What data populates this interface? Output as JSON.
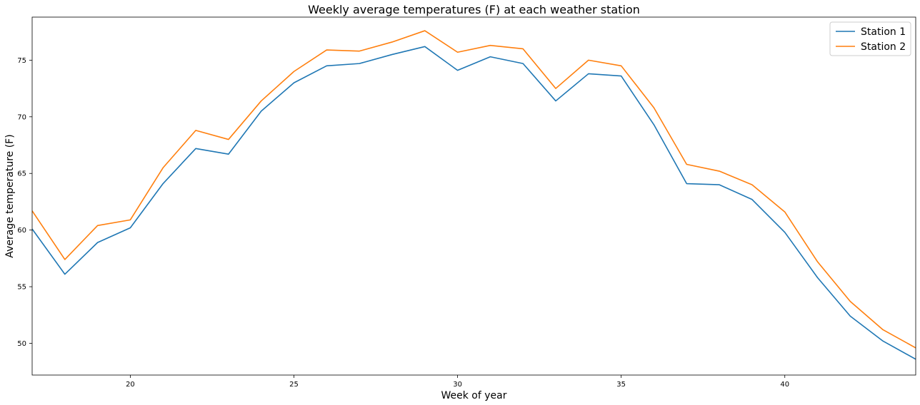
{
  "chart_data": {
    "type": "line",
    "title": "Weekly average temperatures (F) at each weather station",
    "xlabel": "Week of year",
    "ylabel": "Average temperature (F)",
    "xlim": [
      17,
      44
    ],
    "ylim": [
      47.2,
      78.8
    ],
    "xticks": [
      20,
      25,
      30,
      35,
      40
    ],
    "yticks": [
      50,
      55,
      60,
      65,
      70,
      75
    ],
    "grid": false,
    "legend_position": "top-right",
    "x": [
      17,
      18,
      19,
      20,
      21,
      22,
      23,
      24,
      25,
      26,
      27,
      28,
      29,
      30,
      31,
      32,
      33,
      34,
      35,
      36,
      37,
      38,
      39,
      40,
      41,
      42,
      43,
      44
    ],
    "series": [
      {
        "name": "Station 1",
        "color": "#1f77b4",
        "values": [
          60.1,
          56.1,
          58.9,
          60.2,
          64.1,
          67.2,
          66.7,
          70.5,
          73.0,
          74.5,
          74.7,
          75.5,
          76.2,
          74.1,
          75.3,
          74.7,
          71.4,
          73.8,
          73.6,
          69.3,
          64.1,
          64.0,
          62.7,
          59.8,
          55.8,
          52.4,
          50.2,
          48.6
        ]
      },
      {
        "name": "Station 2",
        "color": "#ff7f0e",
        "values": [
          61.7,
          57.4,
          60.4,
          60.9,
          65.5,
          68.8,
          68.0,
          71.4,
          74.0,
          75.9,
          75.8,
          76.6,
          77.6,
          75.7,
          76.3,
          76.0,
          72.5,
          75.0,
          74.5,
          70.8,
          65.8,
          65.2,
          64.0,
          61.6,
          57.2,
          53.7,
          51.2,
          49.6
        ]
      }
    ]
  }
}
